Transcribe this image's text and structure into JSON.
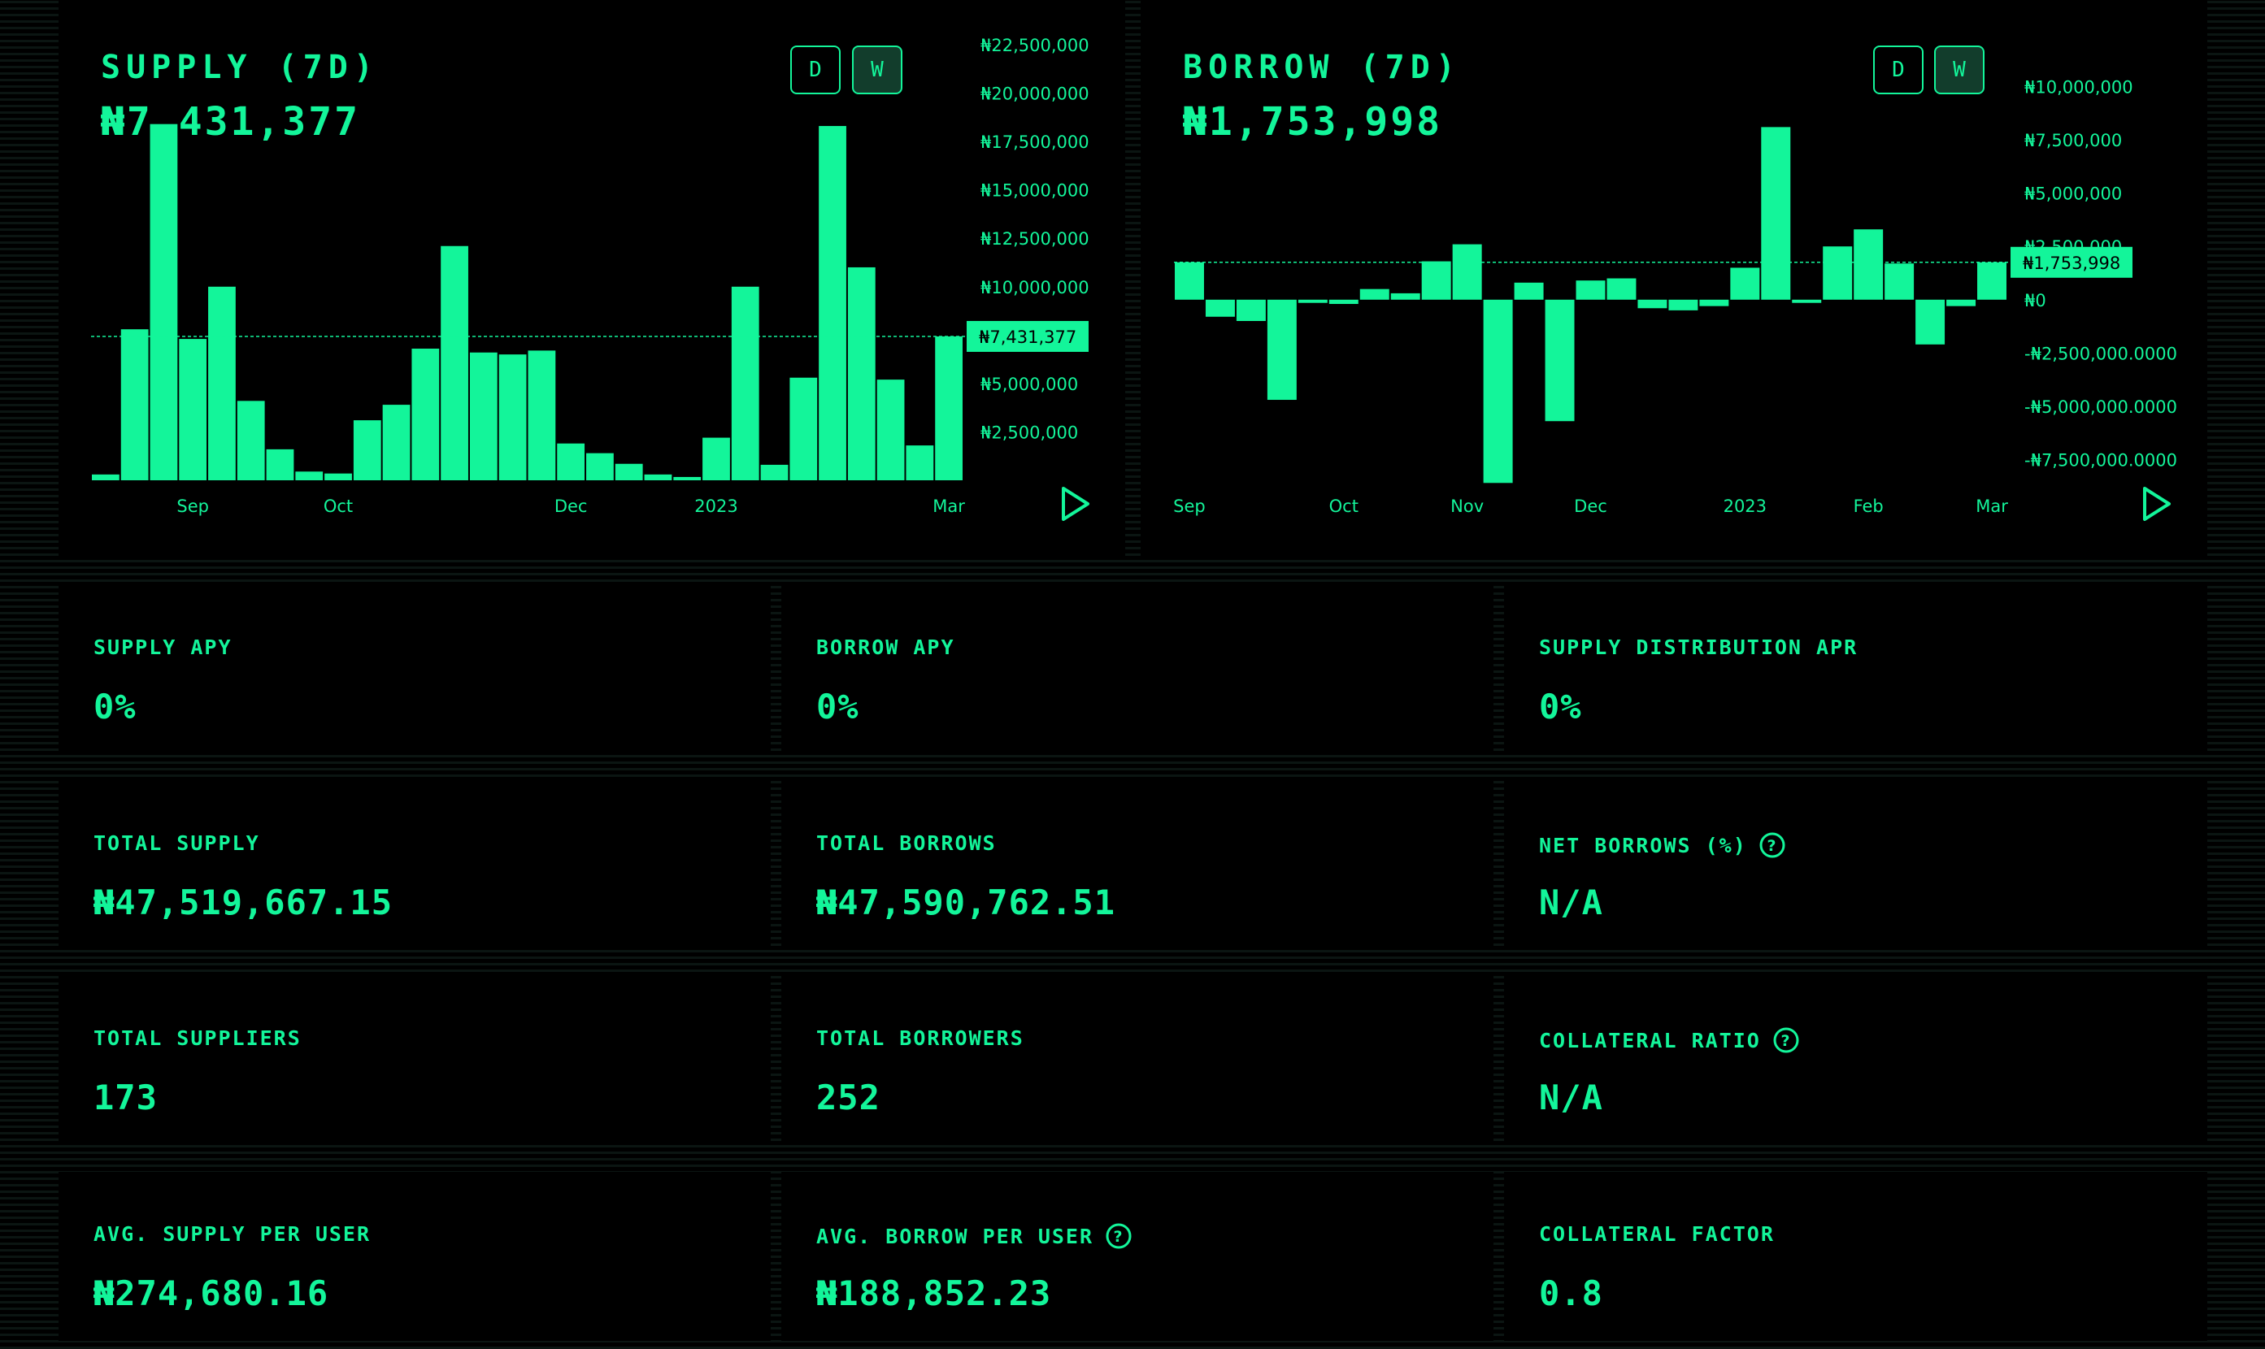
{
  "colors": {
    "accent": "#13f59a",
    "background": "#000000",
    "toggle_active": "#123d2c"
  },
  "supply_chart": {
    "title": "SUPPLY (7D)",
    "value": "₦7,431,377",
    "toggle_d": "D",
    "toggle_w": "W",
    "play_icon": "play-icon",
    "chart_data": {
      "type": "bar",
      "title": "SUPPLY (7D)",
      "ylim": [
        0,
        22500000
      ],
      "y_ticks": [
        2500000,
        5000000,
        7500000,
        10000000,
        12500000,
        15000000,
        17500000,
        20000000,
        22500000
      ],
      "y_tick_labels": [
        "₦2,500,000",
        "₦5,000,000",
        "₦7,500,000",
        "₦10,000,000",
        "₦12,500,000",
        "₦15,000,000",
        "₦17,500,000",
        "₦20,000,000",
        "₦22,500,000"
      ],
      "x_labels": [
        {
          "label": "Sep",
          "index": 3
        },
        {
          "label": "Oct",
          "index": 8
        },
        {
          "label": "Dec",
          "index": 16
        },
        {
          "label": "2023",
          "index": 21
        },
        {
          "label": "Mar",
          "index": 29
        }
      ],
      "values": [
        300000,
        7800000,
        18400000,
        7300000,
        10000000,
        4100000,
        1600000,
        450000,
        350000,
        3100000,
        3900000,
        6800000,
        12100000,
        6600000,
        6500000,
        6700000,
        1900000,
        1400000,
        850000,
        300000,
        170000,
        2200000,
        10000000,
        800000,
        5300000,
        18300000,
        11000000,
        5200000,
        1800000,
        7431377
      ],
      "reference_value": 7431377,
      "reference_label": "₦7,431,377"
    }
  },
  "borrow_chart": {
    "title": "BORROW (7D)",
    "value": "₦1,753,998",
    "toggle_d": "D",
    "toggle_w": "W",
    "play_icon": "play-icon",
    "chart_data": {
      "type": "bar",
      "title": "BORROW (7D)",
      "ylim": [
        -10000000,
        12500000
      ],
      "y_ticks": [
        10000000,
        7500000,
        5000000,
        2500000,
        0,
        -2500000,
        -5000000,
        -7500000
      ],
      "y_tick_labels": [
        "₦10,000,000",
        "₦7,500,000",
        "₦5,000,000",
        "₦2,500,000",
        "₦0",
        "-₦2,500,000.0000",
        "-₦5,000,000.0000",
        "-₦7,500,000.0000"
      ],
      "x_labels": [
        {
          "label": "Sep",
          "index": 0
        },
        {
          "label": "Oct",
          "index": 5
        },
        {
          "label": "Nov",
          "index": 9
        },
        {
          "label": "Dec",
          "index": 13
        },
        {
          "label": "2023",
          "index": 18
        },
        {
          "label": "Feb",
          "index": 22
        },
        {
          "label": "Mar",
          "index": 26
        }
      ],
      "values": [
        1753998,
        -800000,
        -1000000,
        -4700000,
        -150000,
        -200000,
        500000,
        300000,
        1800000,
        2600000,
        -8600000,
        800000,
        -5700000,
        900000,
        1000000,
        -400000,
        -500000,
        -300000,
        1500000,
        8100000,
        -150000,
        2500000,
        3300000,
        1700000,
        -2100000,
        -300000,
        1753998
      ],
      "reference_value": 1753998,
      "reference_label": "₦1,753,998"
    }
  },
  "stats": [
    {
      "label": "SUPPLY APY",
      "value": "0%",
      "help": false
    },
    {
      "label": "BORROW APY",
      "value": "0%",
      "help": false
    },
    {
      "label": "SUPPLY DISTRIBUTION APR",
      "value": "0%",
      "help": false
    },
    {
      "label": "TOTAL SUPPLY",
      "value": "₦47,519,667.15",
      "help": false
    },
    {
      "label": "TOTAL BORROWS",
      "value": "₦47,590,762.51",
      "help": false
    },
    {
      "label": "NET BORROWS (%)",
      "value": "N/A",
      "help": true
    },
    {
      "label": "TOTAL SUPPLIERS",
      "value": "173",
      "help": false
    },
    {
      "label": "TOTAL BORROWERS",
      "value": "252",
      "help": false
    },
    {
      "label": "COLLATERAL RATIO",
      "value": "N/A",
      "help": true
    },
    {
      "label": "AVG. SUPPLY PER USER",
      "value": "₦274,680.16",
      "help": false
    },
    {
      "label": "AVG. BORROW PER USER",
      "value": "₦188,852.23",
      "help": true
    },
    {
      "label": "COLLATERAL FACTOR",
      "value": "0.8",
      "help": false
    }
  ]
}
